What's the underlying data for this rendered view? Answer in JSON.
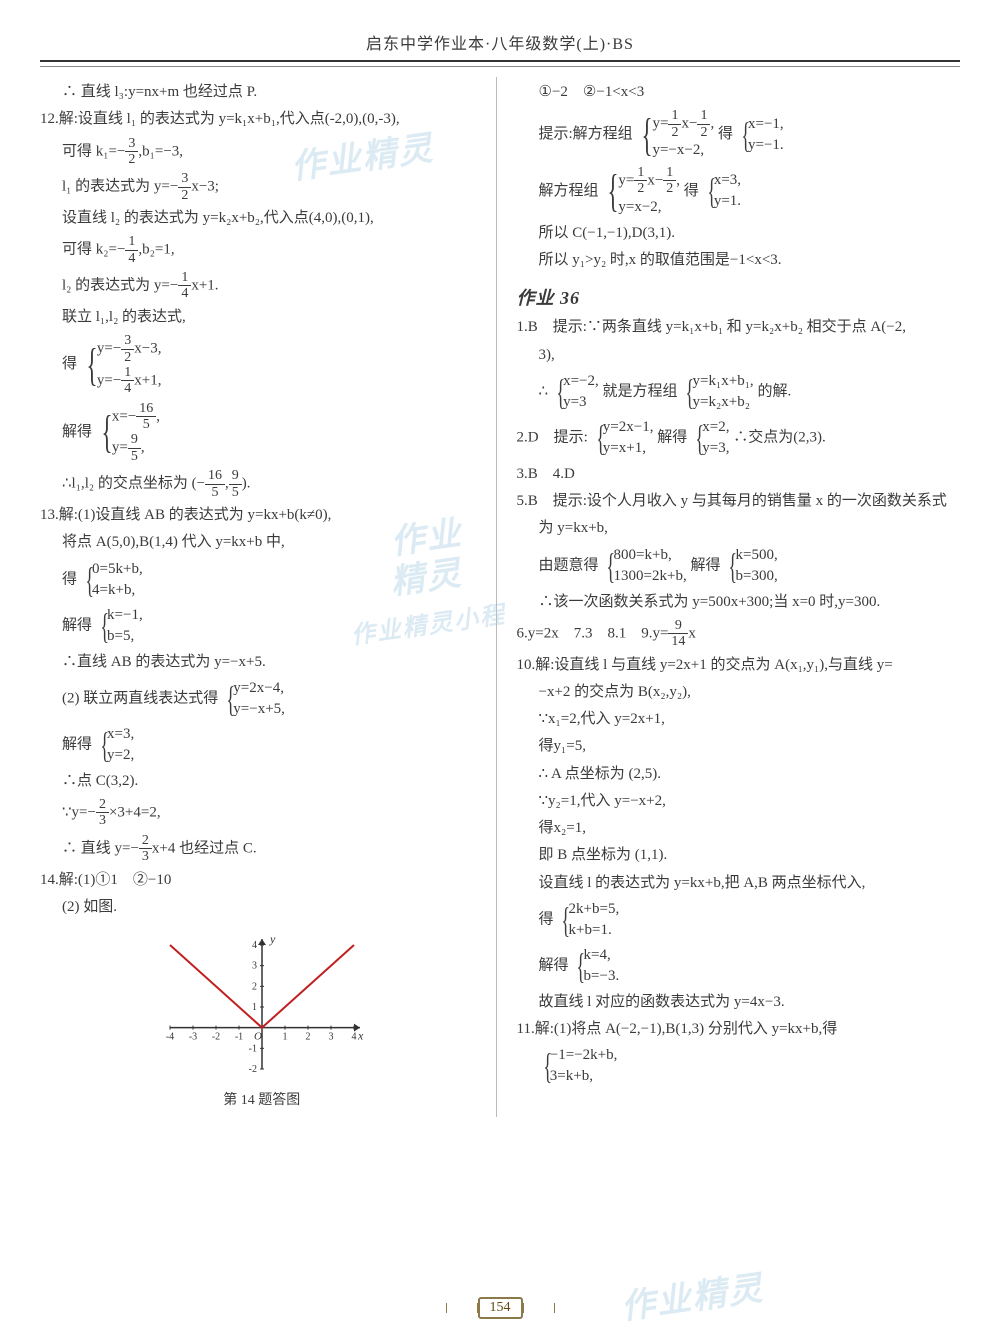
{
  "header_title": "启东中学作业本·八年级数学(上)·BS",
  "page_number": "154",
  "watermarks": {
    "w1": "作业精灵",
    "w2": "作业",
    "w3": "精灵",
    "w4": "作业精灵小程",
    "w5": "作业精灵"
  },
  "left": {
    "l01": "∴ 直线 l₃:y=nx+m 也经过点 P.",
    "l02": "12.解:设直线 l₁ 的表达式为 y=k₁x+b₁,代入点(-2,0),(0,-3),",
    "l03a": "可得 k₁=−",
    "l03b": ",b₁=−3,",
    "f03n": "3",
    "f03d": "2",
    "l04a": "l₁ 的表达式为 y=−",
    "l04b": "x−3;",
    "f04n": "3",
    "f04d": "2",
    "l05": "设直线 l₂ 的表达式为 y=k₂x+b₂,代入点(4,0),(0,1),",
    "l06a": "可得 k₂=−",
    "l06b": ",b₂=1,",
    "f06n": "1",
    "f06d": "4",
    "l07a": "l₂ 的表达式为 y=−",
    "l07b": "x+1.",
    "f07n": "1",
    "f07d": "4",
    "l08": "联立 l₁,l₂ 的表达式,",
    "b1_pre": "得",
    "b1_r1a": "y=−",
    "b1_r1b": "x−3,",
    "b1_f1n": "3",
    "b1_f1d": "2",
    "b1_r2a": "y=−",
    "b1_r2b": "x+1,",
    "b1_f2n": "1",
    "b1_f2d": "4",
    "b2_pre": "解得",
    "b2_r1a": "x=−",
    "b2_r1b": ",",
    "b2_f1n": "16",
    "b2_f1d": "5",
    "b2_r2a": "y=",
    "b2_r2b": ",",
    "b2_f2n": "9",
    "b2_f2d": "5",
    "l09a": "∴l₁,l₂ 的交点坐标为 (−",
    "l09b": ",",
    "l09c": ").",
    "f09an": "16",
    "f09ad": "5",
    "f09bn": "9",
    "f09bd": "5",
    "l10": "13.解:(1)设直线 AB 的表达式为 y=kx+b(k≠0),",
    "l11": "将点 A(5,0),B(1,4) 代入 y=kx+b 中,",
    "b3_pre": "得",
    "b3_r1": "0=5k+b,",
    "b3_r2": "4=k+b,",
    "b4_pre": "解得",
    "b4_r1": "k=−1,",
    "b4_r2": "b=5,",
    "l12": "∴直线 AB 的表达式为 y=−x+5.",
    "l13": "(2) 联立两直线表达式得",
    "b5_r1": "y=2x−4,",
    "b5_r2": "y=−x+5,",
    "b6_pre": "解得",
    "b6_r1": "x=3,",
    "b6_r2": "y=2,",
    "l14": "∴点 C(3,2).",
    "l15a": "∵y=−",
    "l15b": "×3+4=2,",
    "f15n": "2",
    "f15d": "3",
    "l16a": "∴ 直线 y=−",
    "l16b": "x+4 也经过点 C.",
    "f16n": "2",
    "f16d": "3",
    "l17": "14.解:(1)①1　②−10",
    "l18": "(2) 如图.",
    "figcap": "第 14 题答图"
  },
  "right": {
    "r01": "①−2　②−1<x<3",
    "r02": "提示:解方程组",
    "r02b1_r1a": "y=",
    "r02b1_r1b": "x−",
    "r02b1_r1c": ",",
    "r02f1n": "1",
    "r02f1d": "2",
    "r02f2n": "1",
    "r02f2d": "2",
    "r02b1_r2": "y=−x−2,",
    "r02mid": " 得 ",
    "r02b2_r1": "x=−1,",
    "r02b2_r2": "y=−1.",
    "r03": "解方程组",
    "r03b1_r1a": "y=",
    "r03b1_r1b": "x−",
    "r03b1_r1c": ",",
    "r03f1n": "1",
    "r03f1d": "2",
    "r03f2n": "1",
    "r03f2d": "2",
    "r03b1_r2": "y=x−2,",
    "r03mid": " 得 ",
    "r03b2_r1": "x=3,",
    "r03b2_r2": "y=1.",
    "r04": "所以 C(−1,−1),D(3,1).",
    "r05": "所以 y₁>y₂ 时,x 的取值范围是−1<x<3.",
    "sec": "作业 36",
    "r06": "1.B　提示:∵两条直线 y=k₁x+b₁ 和 y=k₂x+b₂ 相交于点 A(−2,",
    "r06b": "3),",
    "r07a": "∴",
    "r07b1_r1": "x=−2,",
    "r07b1_r2": "y=3",
    "r07mid": " 就是方程组 ",
    "r07b2_r1": "y=k₁x+b₁,",
    "r07b2_r2": "y=k₂x+b₂",
    "r07end": " 的解.",
    "r08a": "2.D　提示:",
    "r08b1_r1": "y=2x−1,",
    "r08b1_r2": "y=x+1,",
    "r08mid": " 解得",
    "r08b2_r1": "x=2,",
    "r08b2_r2": "y=3,",
    "r08end": " ∴交点为(2,3).",
    "r09": "3.B　4.D",
    "r10": "5.B　提示:设个人月收入 y 与其每月的销售量 x 的一次函数关系式",
    "r10b": "为 y=kx+b,",
    "r11a": "由题意得",
    "r11b1_r1": "800=k+b,",
    "r11b1_r2": "1300=2k+b,",
    "r11mid": " 解得",
    "r11b2_r1": "k=500,",
    "r11b2_r2": "b=300,",
    "r12": "∴该一次函数关系式为 y=500x+300;当 x=0 时,y=300.",
    "r13a": "6.y=2x　7.3　8.1　9.y=",
    "r13b": "x",
    "f13n": "9",
    "f13d": "14",
    "r14": "10.解:设直线 l 与直线 y=2x+1 的交点为 A(x₁,y₁),与直线 y=",
    "r14b": "−x+2 的交点为 B(x₂,y₂),",
    "r15": "∵x₁=2,代入 y=2x+1,",
    "r16": "得y₁=5,",
    "r17": "∴ A 点坐标为 (2,5).",
    "r18": "∵y₂=1,代入 y=−x+2,",
    "r19": "得x₂=1,",
    "r20": "即 B 点坐标为 (1,1).",
    "r21": "设直线 l 的表达式为 y=kx+b,把 A,B 两点坐标代入,",
    "r22pre": "得 ",
    "r22r1": "2k+b=5,",
    "r22r2": "k+b=1.",
    "r23pre": "解得 ",
    "r23r1": "k=4,",
    "r23r2": "b=−3.",
    "r24": "故直线 l 对应的函数表达式为 y=4x−3.",
    "r25": "11.解:(1)将点 A(−2,−1),B(1,3) 分别代入 y=kx+b,得",
    "r26r1": "−1=−2k+b,",
    "r26r2": "3=k+b,"
  },
  "chart": {
    "x_range": [
      -4,
      4
    ],
    "y_range": [
      -2,
      4
    ],
    "xticks": [
      -4,
      -3,
      -2,
      -1,
      1,
      2,
      3,
      4
    ],
    "yticks": [
      -2,
      -1,
      1,
      2,
      3,
      4
    ],
    "axis_color": "#333",
    "line_color": "#c02020",
    "v_points": [
      [
        -4,
        4
      ],
      [
        0,
        0
      ],
      [
        4,
        4
      ]
    ],
    "xlabel": "x",
    "ylabel": "y",
    "origin": "O"
  }
}
